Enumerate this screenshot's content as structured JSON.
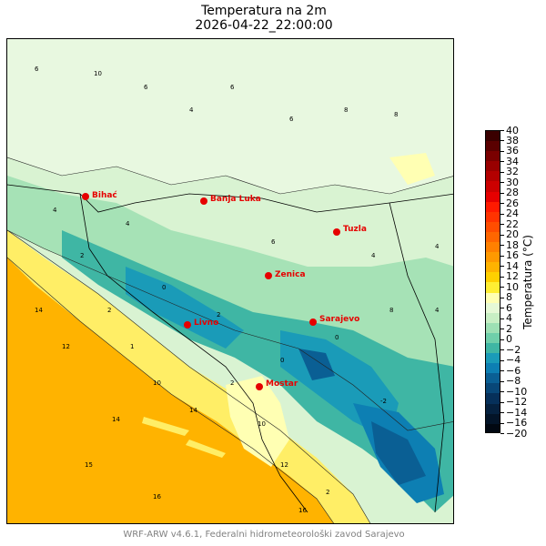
{
  "header": {
    "title": "Temperatura na 2m",
    "datetime": "2026-04-22_22:00:00"
  },
  "footer": {
    "credit": "WRF-ARW v4.6.1, Federalni hidrometeorološki zavod Sarajevo"
  },
  "colorbar": {
    "label": "Temperatura (°C)",
    "ticks": [
      "40",
      "38",
      "36",
      "34",
      "32",
      "30",
      "28",
      "26",
      "24",
      "22",
      "20",
      "18",
      "16",
      "14",
      "12",
      "10",
      "8",
      "6",
      "4",
      "2",
      "0",
      "−2",
      "−4",
      "−6",
      "−8",
      "−10",
      "−12",
      "−14",
      "−16",
      "−20"
    ],
    "colors": [
      "#3a0000",
      "#5a0000",
      "#7a0000",
      "#990000",
      "#b30000",
      "#cc0000",
      "#e60000",
      "#ff1a00",
      "#ff3300",
      "#ff4d00",
      "#ff6600",
      "#ff8000",
      "#ff9900",
      "#ffb300",
      "#ffd000",
      "#ffee33",
      "#ffffb3",
      "#e6f9d6",
      "#c8efc4",
      "#9de0b4",
      "#6fcfaa",
      "#3fb6a4",
      "#1a9bb8",
      "#0d7fb3",
      "#0a5f94",
      "#084778",
      "#06305a",
      "#05213f",
      "#031428",
      "#010812"
    ]
  },
  "cities": [
    {
      "name": "Bihać"
    },
    {
      "name": "Banja Luka"
    },
    {
      "name": "Tuzla"
    },
    {
      "name": "Zenica"
    },
    {
      "name": "Livno"
    },
    {
      "name": "Sarajevo"
    },
    {
      "name": "Mostar"
    }
  ],
  "contour_labels": [
    "6",
    "10",
    "6",
    "4",
    "6",
    "6",
    "8",
    "8",
    "4",
    "4",
    "6",
    "2",
    "4",
    "0",
    "2",
    "0",
    "-2",
    "0",
    "2",
    "4",
    "2",
    "10",
    "12",
    "14",
    "10",
    "12",
    "14",
    "16",
    "14",
    "15",
    "16",
    "8",
    "4",
    "2",
    "1"
  ]
}
